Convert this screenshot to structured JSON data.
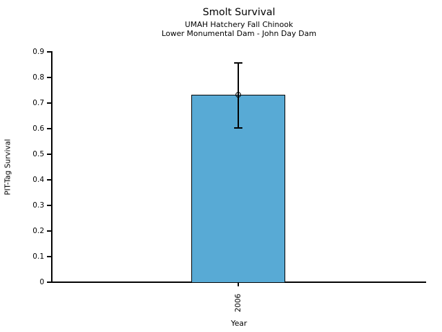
{
  "page": {
    "background_color": "#ffffff",
    "text_color": "#000000"
  },
  "chart_data": {
    "type": "bar",
    "title": "Smolt Survival",
    "subtitle_lines": [
      "UMAH Hatchery Fall Chinook",
      "Lower Monumental Dam - John Day Dam"
    ],
    "xlabel": "Year",
    "ylabel": "PIT-Tag Survival",
    "categories": [
      "2006"
    ],
    "series": [
      {
        "name": "PIT-Tag Survival",
        "values": [
          0.732
        ],
        "error_low": [
          0.603
        ],
        "error_high": [
          0.857
        ]
      }
    ],
    "ylim": [
      0,
      0.9
    ],
    "yticks": [
      0,
      0.1,
      0.2,
      0.3,
      0.4,
      0.5,
      0.6,
      0.7,
      0.8,
      0.9
    ],
    "ytick_labels": [
      "0",
      "0.1",
      "0.2",
      "0.3",
      "0.4",
      "0.5",
      "0.6",
      "0.7",
      "0.8",
      "0.9"
    ],
    "grid": false,
    "legend": "none",
    "marker": "open-circle",
    "bar_color": "#58AAD5",
    "bar_edge_color": "#000000",
    "error_bar_color": "#000000"
  }
}
